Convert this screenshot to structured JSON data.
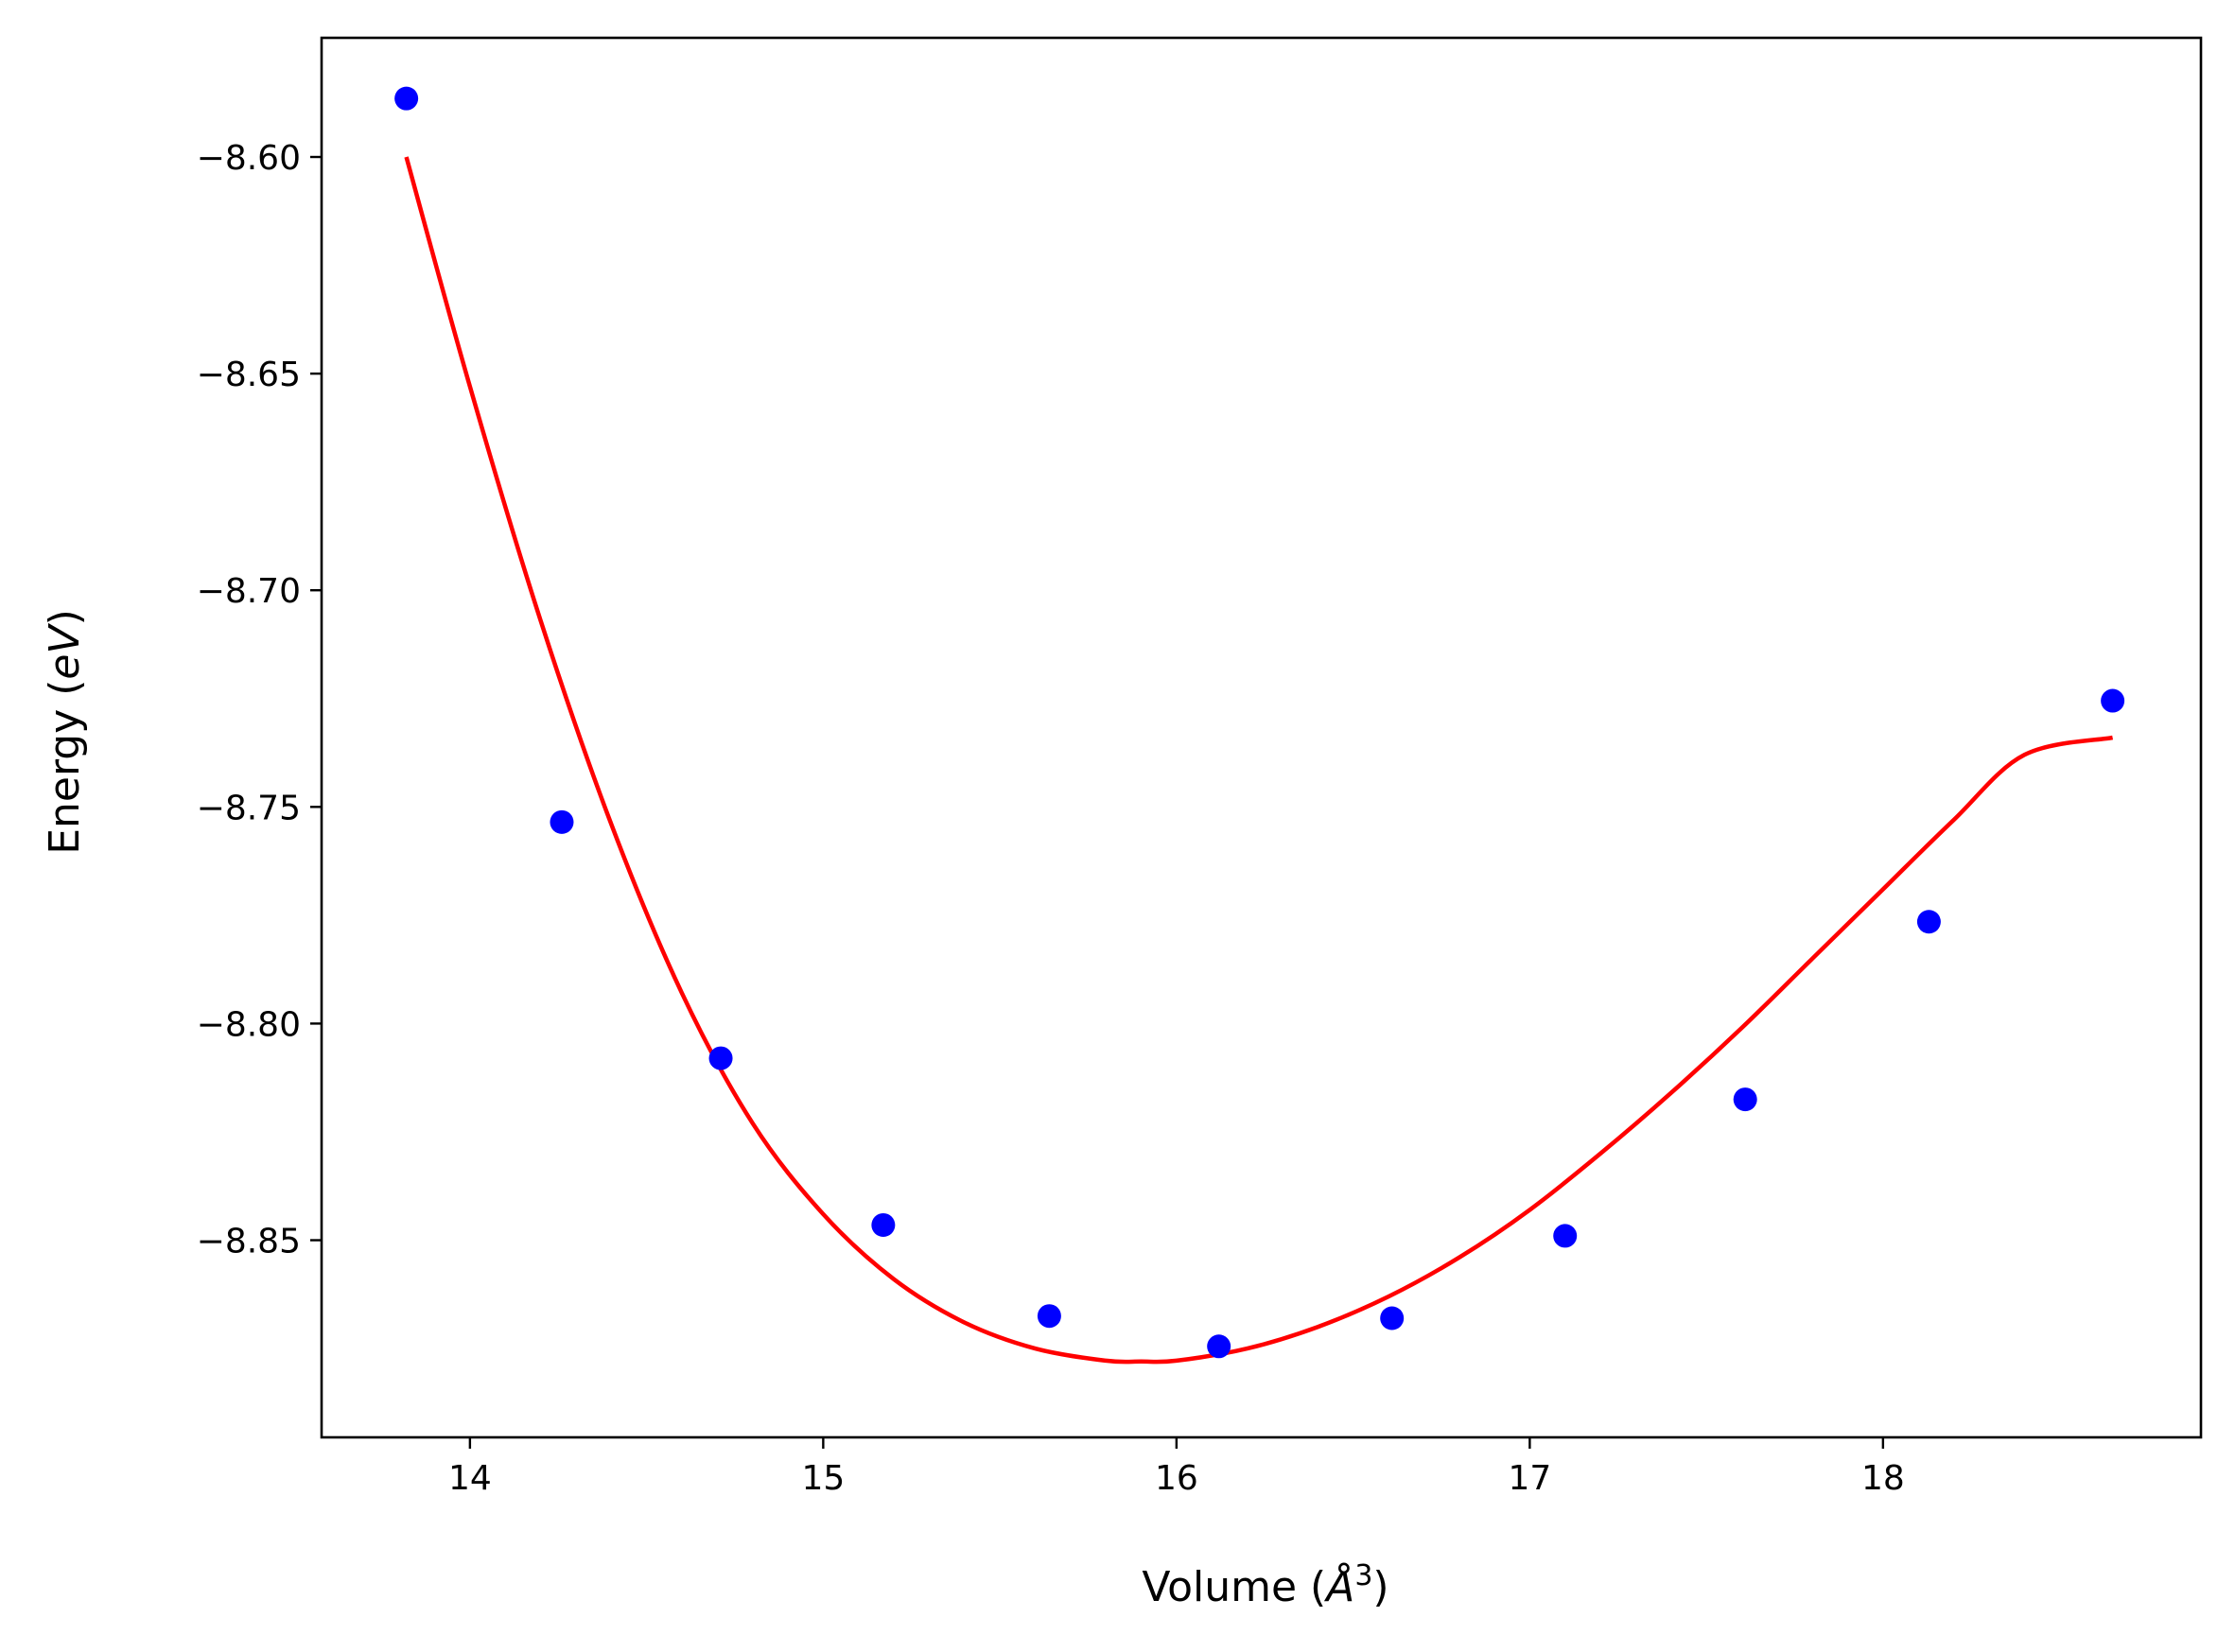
{
  "chart_data": {
    "type": "scatter",
    "title": "",
    "xlabel": {
      "pre": "Volume (",
      "symbol": "Å",
      "sup": "3",
      "post": ")"
    },
    "ylabel": {
      "pre": "Energy (",
      "symbol": "eV",
      "post": ")"
    },
    "xlim": [
      13.58,
      18.9
    ],
    "ylim": [
      -8.8955,
      -8.5725
    ],
    "x_ticks": [
      14,
      15,
      16,
      17,
      18
    ],
    "x_tick_labels": [
      "14",
      "15",
      "16",
      "17",
      "18"
    ],
    "y_ticks": [
      -8.6,
      -8.65,
      -8.7,
      -8.75,
      -8.8,
      -8.85
    ],
    "y_tick_labels": [
      "−8.60",
      "−8.65",
      "−8.70",
      "−8.75",
      "−8.80",
      "−8.85"
    ],
    "grid": false,
    "legend": "none",
    "series": [
      {
        "kind": "scatter",
        "color": "#0000ff",
        "x": [
          13.82,
          14.26,
          14.71,
          15.17,
          15.64,
          16.12,
          16.61,
          17.1,
          17.61,
          18.13,
          18.65
        ],
        "y": [
          -8.5865,
          -8.7535,
          -8.808,
          -8.8465,
          -8.8675,
          -8.8745,
          -8.868,
          -8.849,
          -8.8175,
          -8.7765,
          -8.7255
        ]
      },
      {
        "kind": "line",
        "color": "#ff0000",
        "x": [
          13.82,
          14.0,
          14.2,
          14.4,
          14.6,
          14.8,
          15.0,
          15.2,
          15.4,
          15.6,
          15.8,
          15.9,
          16.0,
          16.2,
          16.4,
          16.6,
          16.8,
          17.0,
          17.2,
          17.4,
          17.6,
          17.8,
          18.0,
          18.2,
          18.4,
          18.65
        ],
        "y": [
          -8.6,
          -8.653,
          -8.707,
          -8.754,
          -8.793,
          -8.823,
          -8.844,
          -8.859,
          -8.869,
          -8.875,
          -8.8778,
          -8.878,
          -8.8778,
          -8.875,
          -8.87,
          -8.863,
          -8.854,
          -8.843,
          -8.83,
          -8.816,
          -8.801,
          -8.785,
          -8.769,
          -8.753,
          -8.738,
          -8.734
        ]
      }
    ]
  }
}
